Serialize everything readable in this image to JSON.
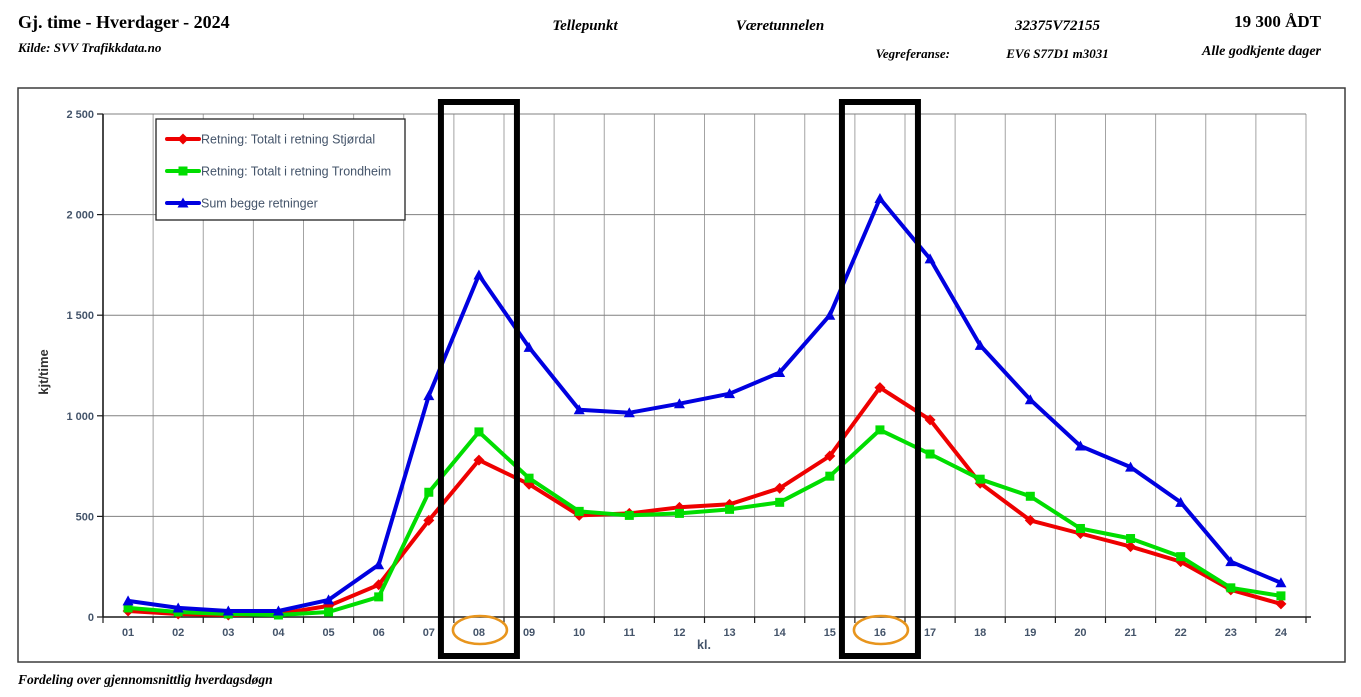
{
  "header": {
    "title": "Gj. time - Hverdager - 2024",
    "source": "Kilde: SVV Trafikkdata.no",
    "tellepunkt_label": "Tellepunkt",
    "station_name": "Væretunnelen",
    "vegreferanse_label": "Vegreferanse:",
    "station_id": "32375V72155",
    "road_reference": "EV6 S77D1 m3031",
    "adt": "19 300 ÅDT",
    "adt_note": "Alle godkjente dager"
  },
  "footer": {
    "caption": "Fordeling over gjennomsnittlig hverdagsdøgn"
  },
  "chart_data": {
    "type": "line",
    "xlabel": "kl.",
    "ylabel": "kjt/time",
    "ylim": [
      0,
      2500
    ],
    "ytick_step": 500,
    "ytick_labels": [
      "0",
      "500",
      "1 000",
      "1 500",
      "2 000",
      "2 500"
    ],
    "grid": true,
    "legend_position": "top-left",
    "categories": [
      "01",
      "02",
      "03",
      "04",
      "05",
      "06",
      "07",
      "08",
      "09",
      "10",
      "11",
      "12",
      "13",
      "14",
      "15",
      "16",
      "17",
      "18",
      "19",
      "20",
      "21",
      "22",
      "23",
      "24"
    ],
    "series": [
      {
        "name": "Retning: Totalt i retning Stjørdal",
        "color": "#ee0000",
        "marker": "diamond",
        "values": [
          30,
          15,
          10,
          15,
          55,
          160,
          480,
          780,
          660,
          505,
          515,
          545,
          560,
          640,
          800,
          1140,
          980,
          665,
          480,
          415,
          350,
          275,
          135,
          65
        ]
      },
      {
        "name": "Retning: Totalt i retning Trondheim",
        "color": "#00dd00",
        "marker": "square",
        "values": [
          45,
          25,
          15,
          10,
          25,
          100,
          620,
          920,
          690,
          525,
          505,
          515,
          535,
          570,
          700,
          930,
          810,
          685,
          600,
          440,
          390,
          300,
          145,
          105
        ]
      },
      {
        "name": "Sum begge retninger",
        "color": "#0000e0",
        "marker": "triangle",
        "values": [
          80,
          45,
          30,
          30,
          85,
          260,
          1100,
          1700,
          1340,
          1030,
          1015,
          1060,
          1110,
          1215,
          1500,
          2080,
          1780,
          1350,
          1080,
          850,
          745,
          570,
          275,
          170
        ]
      }
    ],
    "highlights": {
      "boxed_hours": [
        "08",
        "16"
      ],
      "circled_hours": [
        "08",
        "16"
      ],
      "box_color": "#000000",
      "circle_color": "#e8951d"
    },
    "colors": {
      "grid_h": "#808080",
      "grid_v": "#a3a3a3",
      "axis": "#1a1a1a",
      "outer_border": "#3c3c3c",
      "tick_text": "#44546a"
    }
  }
}
